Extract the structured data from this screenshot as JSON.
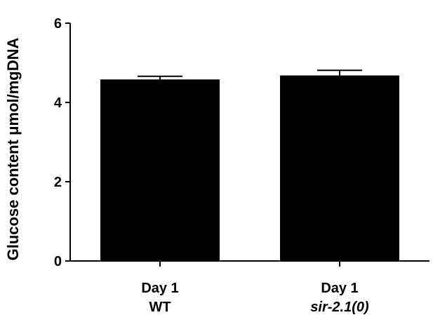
{
  "chart_data": {
    "type": "bar",
    "title": "",
    "xlabel": "",
    "ylabel": "Glucose content μmol/mgDNA",
    "ylim": [
      0,
      6
    ],
    "yticks": [
      0,
      2,
      4,
      6
    ],
    "grid": false,
    "categories": [
      {
        "line1": "Day 1",
        "line2": "WT",
        "line2_italic": false
      },
      {
        "line1": "Day 1",
        "line2": "sir-2.1(0)",
        "line2_italic": true
      }
    ],
    "values": [
      4.58,
      4.68
    ],
    "error": [
      0.08,
      0.13
    ],
    "bar_color": "#000000"
  }
}
